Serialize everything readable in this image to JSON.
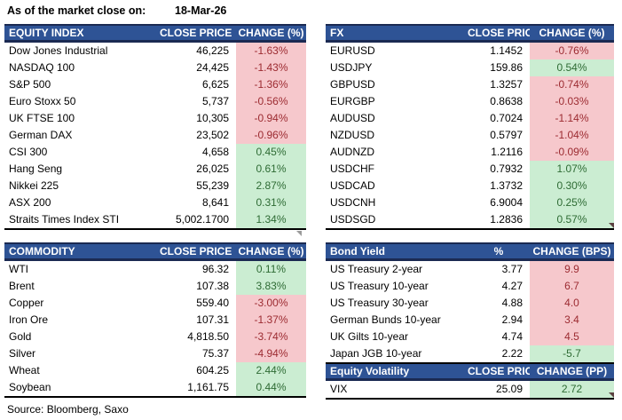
{
  "meta": {
    "as_of_label": "As of the market close on:",
    "as_of_date": "18-Mar-26",
    "source": "Source: Bloomberg, Saxo"
  },
  "colors": {
    "header_bg": "#2E5395",
    "header_border": "#1B2A52",
    "negative_bg": "#F6C8CC",
    "negative_text": "#9C2B31",
    "positive_bg": "#CBEDD2",
    "positive_text": "#2E6B34",
    "table_border": "#000000"
  },
  "tables": {
    "equity_index": {
      "headers": [
        "EQUITY INDEX",
        "CLOSE PRICE",
        "CHANGE (%)"
      ],
      "rows": [
        {
          "name": "Dow Jones Industrial",
          "price": "46,225",
          "change": "-1.63%",
          "fill": "red"
        },
        {
          "name": "NASDAQ 100",
          "price": "24,425",
          "change": "-1.43%",
          "fill": "red"
        },
        {
          "name": "S&P 500",
          "price": "6,625",
          "change": "-1.36%",
          "fill": "red"
        },
        {
          "name": "Euro Stoxx 50",
          "price": "5,737",
          "change": "-0.56%",
          "fill": "red"
        },
        {
          "name": "UK FTSE 100",
          "price": "10,305",
          "change": "-0.94%",
          "fill": "red"
        },
        {
          "name": "German DAX",
          "price": "23,502",
          "change": "-0.96%",
          "fill": "red"
        },
        {
          "name": "CSI 300",
          "price": "4,658",
          "change": "0.45%",
          "fill": "green"
        },
        {
          "name": "Hang Seng",
          "price": "26,025",
          "change": "0.61%",
          "fill": "green"
        },
        {
          "name": "Nikkei 225",
          "price": "55,239",
          "change": "2.87%",
          "fill": "green"
        },
        {
          "name": "ASX 200",
          "price": "8,641",
          "change": "0.31%",
          "fill": "green"
        },
        {
          "name": "Straits Times Index STI",
          "price": "5,002.1700",
          "change": "1.34%",
          "fill": "green"
        }
      ]
    },
    "fx": {
      "headers": [
        "FX",
        "CLOSE PRICE",
        "CHANGE (%)"
      ],
      "rows": [
        {
          "name": "EURUSD",
          "price": "1.1452",
          "change": "-0.76%",
          "fill": "red"
        },
        {
          "name": "USDJPY",
          "price": "159.86",
          "change": "0.54%",
          "fill": "green"
        },
        {
          "name": "GBPUSD",
          "price": "1.3257",
          "change": "-0.74%",
          "fill": "red"
        },
        {
          "name": "EURGBP",
          "price": "0.8638",
          "change": "-0.03%",
          "fill": "red"
        },
        {
          "name": "AUDUSD",
          "price": "0.7024",
          "change": "-1.14%",
          "fill": "red"
        },
        {
          "name": "NZDUSD",
          "price": "0.5797",
          "change": "-1.04%",
          "fill": "red"
        },
        {
          "name": "AUDNZD",
          "price": "1.2116",
          "change": "-0.09%",
          "fill": "red"
        },
        {
          "name": "USDCHF",
          "price": "0.7932",
          "change": "1.07%",
          "fill": "green"
        },
        {
          "name": "USDCAD",
          "price": "1.3732",
          "change": "0.30%",
          "fill": "green"
        },
        {
          "name": "USDCNH",
          "price": "6.9004",
          "change": "0.25%",
          "fill": "green"
        },
        {
          "name": "USDSGD",
          "price": "1.2836",
          "change": "0.57%",
          "fill": "green"
        }
      ]
    },
    "commodity": {
      "headers": [
        "COMMODITY",
        "CLOSE PRICE",
        "CHANGE (%)"
      ],
      "rows": [
        {
          "name": "WTI",
          "price": "96.32",
          "change": "0.11%",
          "fill": "green"
        },
        {
          "name": "Brent",
          "price": "107.38",
          "change": "3.83%",
          "fill": "green"
        },
        {
          "name": "Copper",
          "price": "559.40",
          "change": "-3.00%",
          "fill": "red"
        },
        {
          "name": "Iron Ore",
          "price": "107.31",
          "change": "-1.37%",
          "fill": "red"
        },
        {
          "name": "Gold",
          "price": "4,818.50",
          "change": "-3.74%",
          "fill": "red"
        },
        {
          "name": "Silver",
          "price": "75.37",
          "change": "-4.94%",
          "fill": "red"
        },
        {
          "name": "Wheat",
          "price": "604.25",
          "change": "2.44%",
          "fill": "green"
        },
        {
          "name": "Soybean",
          "price": "1,161.75",
          "change": "0.44%",
          "fill": "green"
        }
      ]
    },
    "bond_yield": {
      "headers": [
        "Bond Yield",
        "%",
        "CHANGE (BPS)"
      ],
      "rows": [
        {
          "name": "US Treasury 2-year",
          "price": "3.77",
          "change": "9.9",
          "fill": "red"
        },
        {
          "name": "US Treasury 10-year",
          "price": "4.27",
          "change": "6.7",
          "fill": "red"
        },
        {
          "name": "US Treasury 30-year",
          "price": "4.88",
          "change": "4.0",
          "fill": "red"
        },
        {
          "name": "German Bunds 10-year",
          "price": "2.94",
          "change": "3.4",
          "fill": "red"
        },
        {
          "name": "UK Gilts 10-year",
          "price": "4.74",
          "change": "4.5",
          "fill": "red"
        },
        {
          "name": "Japan JGB 10-year",
          "price": "2.22",
          "change": "-5.7",
          "fill": "green"
        }
      ]
    },
    "equity_volatility": {
      "headers": [
        "Equity Volatility",
        "CLOSE PRICE",
        "CHANGE (PP)"
      ],
      "rows": [
        {
          "name": "VIX",
          "price": "25.09",
          "change": "2.72",
          "fill": "green"
        }
      ]
    }
  }
}
